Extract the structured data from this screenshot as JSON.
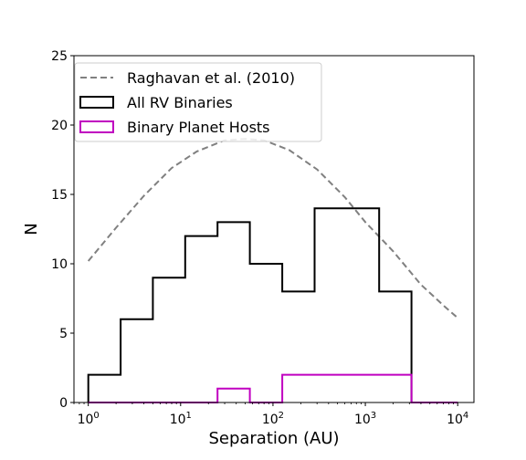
{
  "chart_data": {
    "type": "histogram",
    "xlabel": "Separation (AU)",
    "ylabel": "N",
    "xscale": "log",
    "xlim": [
      0.7,
      15000
    ],
    "ylim": [
      0,
      25
    ],
    "yticks": [
      0,
      5,
      10,
      15,
      20,
      25
    ],
    "xticks": [
      {
        "value": 1,
        "base": "10",
        "exp": "0"
      },
      {
        "value": 10,
        "base": "10",
        "exp": "1"
      },
      {
        "value": 100,
        "base": "10",
        "exp": "2"
      },
      {
        "value": 1000,
        "base": "10",
        "exp": "3"
      },
      {
        "value": 10000,
        "base": "10",
        "exp": "4"
      }
    ],
    "bin_edges": [
      1.0,
      2.24,
      5.01,
      11.2,
      25.1,
      56.2,
      126,
      282,
      631,
      1413,
      3162,
      7079,
      10000
    ],
    "grid": false,
    "legend_position": "top-left",
    "series": [
      {
        "name": "Raghavan et al. (2010)",
        "kind": "curve",
        "color": "#808080",
        "style": "dashed",
        "x": [
          1,
          2,
          4,
          8,
          15,
          30,
          50,
          80,
          150,
          300,
          600,
          1000,
          2000,
          4000,
          7000,
          10000
        ],
        "y": [
          10.2,
          12.6,
          14.9,
          16.9,
          18.1,
          18.9,
          19.0,
          18.9,
          18.2,
          16.8,
          14.8,
          13.0,
          10.9,
          8.5,
          7.0,
          6.1
        ]
      },
      {
        "name": "All RV Binaries",
        "kind": "step",
        "color": "#000000",
        "values": [
          2,
          6,
          9,
          12,
          13,
          10,
          8,
          14,
          14,
          8,
          0,
          0
        ]
      },
      {
        "name": "Binary Planet Hosts",
        "kind": "step",
        "color": "#c000c0",
        "values": [
          0,
          0,
          0,
          0,
          1,
          0,
          2,
          2,
          2,
          2,
          0,
          0
        ]
      }
    ]
  }
}
